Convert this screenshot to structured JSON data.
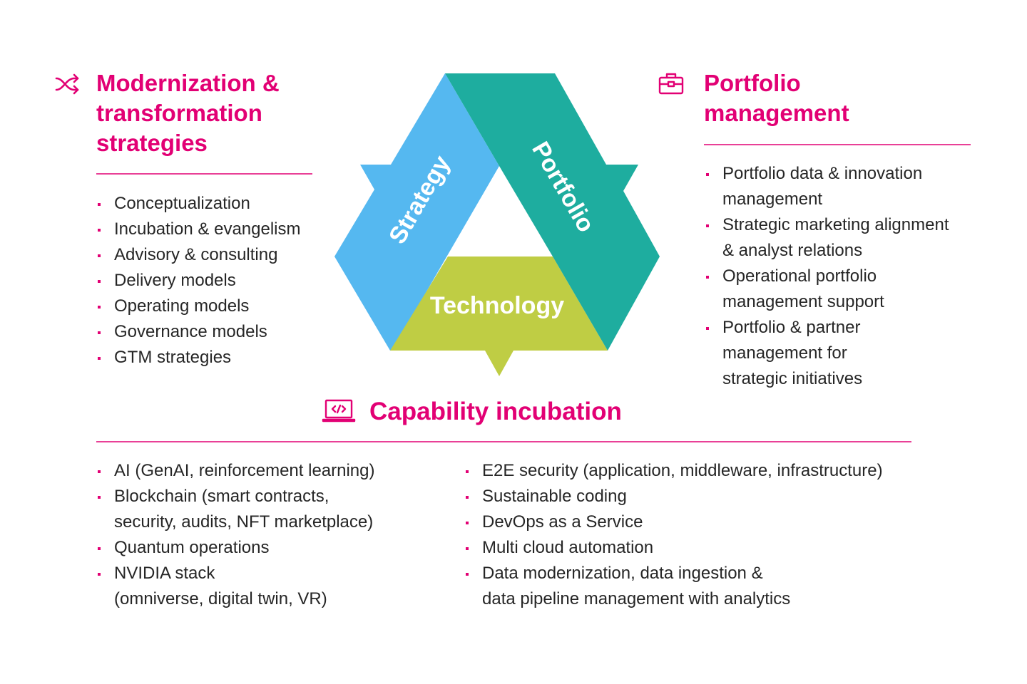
{
  "colors": {
    "accent": "#e20074",
    "strategy": "#55b8f0",
    "portfolio": "#1ead9f",
    "technology": "#bfcd44"
  },
  "diagram": {
    "strategy": "Strategy",
    "portfolio": "Portfolio",
    "technology": "Technology"
  },
  "modernization": {
    "icon": "shuffle-icon",
    "title_lines": [
      "Modernization &",
      "transformation",
      "strategies"
    ],
    "items": [
      "Conceptualization",
      "Incubation & evangelism",
      "Advisory & consulting",
      "Delivery models",
      "Operating models",
      "Governance models",
      "GTM strategies"
    ]
  },
  "portfolio": {
    "icon": "briefcase-icon",
    "title_lines": [
      "Portfolio",
      "management"
    ],
    "items": [
      [
        "Portfolio data & innovation",
        "management"
      ],
      [
        "Strategic marketing alignment",
        "& analyst relations"
      ],
      [
        "Operational portfolio",
        "management support"
      ],
      [
        "Portfolio & partner",
        "management for",
        "strategic initiatives"
      ]
    ]
  },
  "capability": {
    "icon": "laptop-code-icon",
    "title": "Capability incubation",
    "left_items": [
      [
        "AI (GenAI, reinforcement learning)"
      ],
      [
        "Blockchain (smart contracts,",
        "security, audits, NFT marketplace)"
      ],
      [
        "Quantum operations"
      ],
      [
        "NVIDIA stack",
        "(omniverse, digital twin, VR)"
      ]
    ],
    "right_items": [
      [
        "E2E security (application, middleware, infrastructure)"
      ],
      [
        "Sustainable coding"
      ],
      [
        "DevOps as a Service"
      ],
      [
        "Multi cloud automation"
      ],
      [
        "Data modernization, data ingestion &",
        "data pipeline management with analytics"
      ]
    ]
  }
}
